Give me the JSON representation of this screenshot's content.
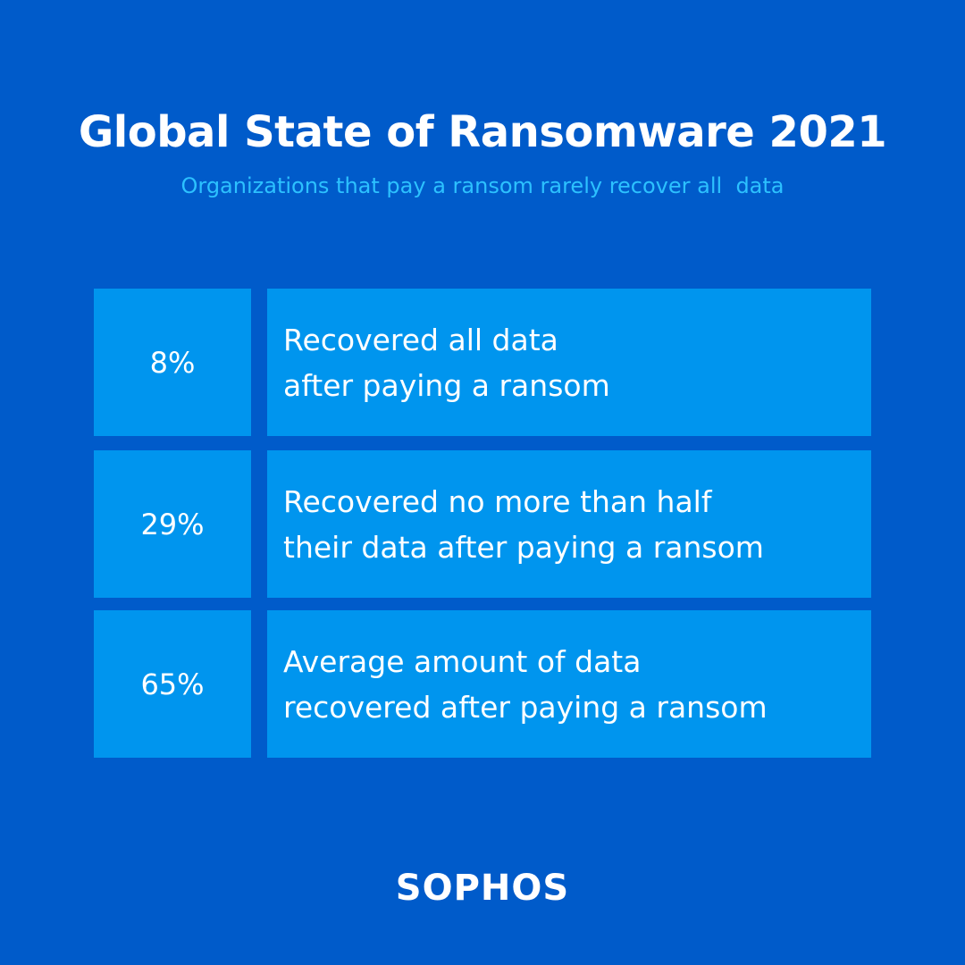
{
  "header": {
    "title": "Global State of Ransomware 2021",
    "subtitle": "Organizations that pay a ransom rarely recover all  data"
  },
  "stats": [
    {
      "value": "8%",
      "lines": [
        "Recovered all data",
        "after paying a ransom"
      ]
    },
    {
      "value": "29%",
      "lines": [
        "Recovered no more than half",
        "their data after paying a ransom"
      ]
    },
    {
      "value": "65%",
      "lines": [
        "Average amount of data",
        "recovered after paying a ransom"
      ]
    }
  ],
  "brand": {
    "logo_text": "SOPHOS"
  },
  "colors": {
    "background": "#005bca",
    "box": "#0095ee",
    "subtitle": "#2cc1ff",
    "text": "#ffffff"
  }
}
